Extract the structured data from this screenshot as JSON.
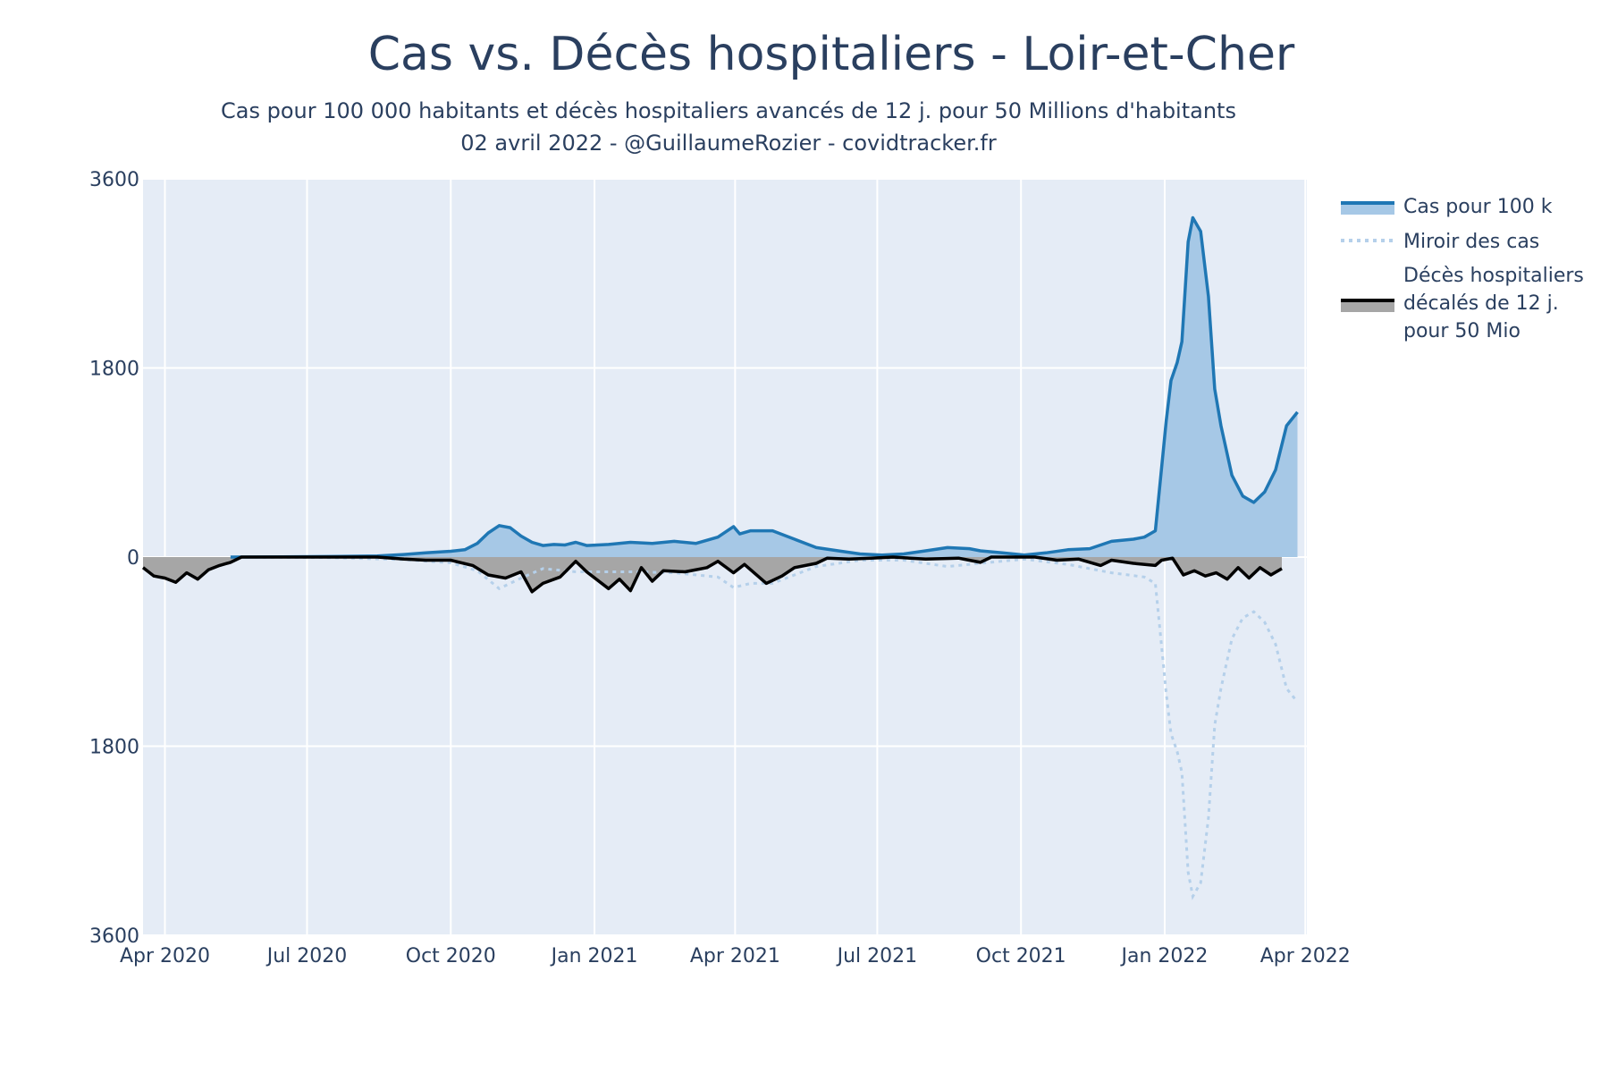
{
  "chart_data": {
    "type": "area",
    "title": "Cas vs. Décès hospitaliers - Loir-et-Cher",
    "subtitle_line1": "Cas pour 100 000 habitants et décès hospitaliers avancés de 12 j. pour 50 Millions d'habitants",
    "subtitle_line2": "02 avril 2022 - @GuillaumeRozier - covidtracker.fr",
    "xlabel": "",
    "ylabel": "",
    "xlim": [
      "2020-03-18",
      "2022-04-02"
    ],
    "ylim": [
      -3600,
      3600
    ],
    "x_ticks": [
      {
        "date": "2020-04-01",
        "label": "Apr 2020"
      },
      {
        "date": "2020-07-01",
        "label": "Jul 2020"
      },
      {
        "date": "2020-10-01",
        "label": "Oct 2020"
      },
      {
        "date": "2021-01-01",
        "label": "Jan 2021"
      },
      {
        "date": "2021-04-01",
        "label": "Apr 2021"
      },
      {
        "date": "2021-07-01",
        "label": "Jul 2021"
      },
      {
        "date": "2021-10-01",
        "label": "Oct 2021"
      },
      {
        "date": "2022-01-01",
        "label": "Jan 2022"
      },
      {
        "date": "2022-04-01",
        "label": "Apr 2022"
      }
    ],
    "y_ticks": [
      {
        "value": 3600,
        "label": "3600"
      },
      {
        "value": 1800,
        "label": "1800"
      },
      {
        "value": 0,
        "label": "0"
      },
      {
        "value": -1800,
        "label": "1800"
      },
      {
        "value": -3600,
        "label": "3600"
      }
    ],
    "grid": true,
    "legend_position": "right",
    "colors": {
      "cases_line": "#1f77b4",
      "cases_fill": "#a6c8e6",
      "mirror_line": "#b5d0ea",
      "deaths_line": "#000000",
      "deaths_fill": "#a6a6a6",
      "plot_bg": "#e5ecf6",
      "grid": "#ffffff"
    },
    "series": [
      {
        "name": "Cas pour 100 k",
        "style": "line-fill-up",
        "points": [
          [
            "2020-05-13",
            0
          ],
          [
            "2020-06-15",
            2
          ],
          [
            "2020-07-15",
            5
          ],
          [
            "2020-08-15",
            10
          ],
          [
            "2020-09-01",
            25
          ],
          [
            "2020-09-15",
            40
          ],
          [
            "2020-10-01",
            55
          ],
          [
            "2020-10-10",
            70
          ],
          [
            "2020-10-18",
            130
          ],
          [
            "2020-10-25",
            230
          ],
          [
            "2020-11-01",
            300
          ],
          [
            "2020-11-08",
            280
          ],
          [
            "2020-11-15",
            200
          ],
          [
            "2020-11-22",
            140
          ],
          [
            "2020-11-29",
            110
          ],
          [
            "2020-12-06",
            120
          ],
          [
            "2020-12-13",
            115
          ],
          [
            "2020-12-20",
            140
          ],
          [
            "2020-12-27",
            110
          ],
          [
            "2021-01-10",
            120
          ],
          [
            "2021-01-24",
            140
          ],
          [
            "2021-02-07",
            130
          ],
          [
            "2021-02-21",
            150
          ],
          [
            "2021-03-07",
            130
          ],
          [
            "2021-03-21",
            190
          ],
          [
            "2021-03-31",
            290
          ],
          [
            "2021-04-04",
            220
          ],
          [
            "2021-04-11",
            250
          ],
          [
            "2021-04-25",
            250
          ],
          [
            "2021-05-09",
            170
          ],
          [
            "2021-05-23",
            90
          ],
          [
            "2021-06-06",
            60
          ],
          [
            "2021-06-20",
            30
          ],
          [
            "2021-07-04",
            20
          ],
          [
            "2021-07-18",
            30
          ],
          [
            "2021-08-01",
            60
          ],
          [
            "2021-08-15",
            90
          ],
          [
            "2021-08-29",
            80
          ],
          [
            "2021-09-05",
            60
          ],
          [
            "2021-09-19",
            40
          ],
          [
            "2021-10-03",
            20
          ],
          [
            "2021-10-17",
            40
          ],
          [
            "2021-10-31",
            70
          ],
          [
            "2021-11-14",
            80
          ],
          [
            "2021-11-28",
            150
          ],
          [
            "2021-12-12",
            170
          ],
          [
            "2021-12-19",
            190
          ],
          [
            "2021-12-26",
            250
          ],
          [
            "2021-12-30",
            850
          ],
          [
            "2022-01-02",
            1300
          ],
          [
            "2022-01-05",
            1680
          ],
          [
            "2022-01-09",
            1850
          ],
          [
            "2022-01-12",
            2050
          ],
          [
            "2022-01-16",
            3000
          ],
          [
            "2022-01-19",
            3230
          ],
          [
            "2022-01-24",
            3100
          ],
          [
            "2022-01-29",
            2480
          ],
          [
            "2022-02-02",
            1600
          ],
          [
            "2022-02-06",
            1250
          ],
          [
            "2022-02-13",
            780
          ],
          [
            "2022-02-20",
            580
          ],
          [
            "2022-02-27",
            520
          ],
          [
            "2022-03-06",
            620
          ],
          [
            "2022-03-13",
            830
          ],
          [
            "2022-03-20",
            1250
          ],
          [
            "2022-03-27",
            1380
          ]
        ]
      },
      {
        "name": "Miroir des cas",
        "style": "dotted-mirror",
        "points": [
          [
            "2020-05-13",
            0
          ],
          [
            "2020-07-15",
            -5
          ],
          [
            "2020-09-01",
            -25
          ],
          [
            "2020-10-01",
            -55
          ],
          [
            "2020-10-18",
            -130
          ],
          [
            "2020-11-01",
            -300
          ],
          [
            "2020-11-15",
            -200
          ],
          [
            "2020-11-29",
            -110
          ],
          [
            "2020-12-20",
            -140
          ],
          [
            "2021-01-24",
            -140
          ],
          [
            "2021-02-21",
            -150
          ],
          [
            "2021-03-21",
            -190
          ],
          [
            "2021-03-31",
            -290
          ],
          [
            "2021-04-11",
            -250
          ],
          [
            "2021-04-25",
            -250
          ],
          [
            "2021-05-23",
            -90
          ],
          [
            "2021-06-20",
            -30
          ],
          [
            "2021-07-18",
            -30
          ],
          [
            "2021-08-15",
            -90
          ],
          [
            "2021-09-05",
            -60
          ],
          [
            "2021-10-03",
            -20
          ],
          [
            "2021-10-31",
            -70
          ],
          [
            "2021-11-28",
            -150
          ],
          [
            "2021-12-19",
            -190
          ],
          [
            "2021-12-26",
            -250
          ],
          [
            "2021-12-30",
            -850
          ],
          [
            "2022-01-02",
            -1300
          ],
          [
            "2022-01-05",
            -1680
          ],
          [
            "2022-01-09",
            -1850
          ],
          [
            "2022-01-12",
            -2050
          ],
          [
            "2022-01-16",
            -3000
          ],
          [
            "2022-01-19",
            -3230
          ],
          [
            "2022-01-24",
            -3100
          ],
          [
            "2022-01-29",
            -2480
          ],
          [
            "2022-02-02",
            -1600
          ],
          [
            "2022-02-06",
            -1250
          ],
          [
            "2022-02-13",
            -780
          ],
          [
            "2022-02-20",
            -580
          ],
          [
            "2022-02-27",
            -520
          ],
          [
            "2022-03-06",
            -620
          ],
          [
            "2022-03-13",
            -830
          ],
          [
            "2022-03-20",
            -1250
          ],
          [
            "2022-03-27",
            -1380
          ]
        ]
      },
      {
        "name": "Décès hospitaliers décalés de 12 j. pour 50 Mio",
        "style": "line-fill-down",
        "points": [
          [
            "2020-03-18",
            -100
          ],
          [
            "2020-03-25",
            -180
          ],
          [
            "2020-04-01",
            -200
          ],
          [
            "2020-04-08",
            -240
          ],
          [
            "2020-04-15",
            -150
          ],
          [
            "2020-04-22",
            -210
          ],
          [
            "2020-04-29",
            -120
          ],
          [
            "2020-05-06",
            -80
          ],
          [
            "2020-05-13",
            -50
          ],
          [
            "2020-05-20",
            0
          ],
          [
            "2020-08-15",
            0
          ],
          [
            "2020-09-01",
            -20
          ],
          [
            "2020-09-15",
            -30
          ],
          [
            "2020-10-01",
            -30
          ],
          [
            "2020-10-15",
            -80
          ],
          [
            "2020-10-25",
            -170
          ],
          [
            "2020-11-05",
            -200
          ],
          [
            "2020-11-15",
            -140
          ],
          [
            "2020-11-22",
            -330
          ],
          [
            "2020-11-29",
            -250
          ],
          [
            "2020-12-10",
            -190
          ],
          [
            "2020-12-20",
            -40
          ],
          [
            "2020-12-27",
            -140
          ],
          [
            "2021-01-10",
            -300
          ],
          [
            "2021-01-17",
            -210
          ],
          [
            "2021-01-24",
            -320
          ],
          [
            "2021-01-31",
            -100
          ],
          [
            "2021-02-07",
            -230
          ],
          [
            "2021-02-14",
            -130
          ],
          [
            "2021-02-28",
            -140
          ],
          [
            "2021-03-14",
            -100
          ],
          [
            "2021-03-21",
            -40
          ],
          [
            "2021-03-31",
            -150
          ],
          [
            "2021-04-07",
            -70
          ],
          [
            "2021-04-21",
            -250
          ],
          [
            "2021-05-01",
            -180
          ],
          [
            "2021-05-09",
            -100
          ],
          [
            "2021-05-23",
            -60
          ],
          [
            "2021-05-30",
            -10
          ],
          [
            "2021-06-13",
            -20
          ],
          [
            "2021-06-27",
            -10
          ],
          [
            "2021-07-11",
            0
          ],
          [
            "2021-08-01",
            -20
          ],
          [
            "2021-08-22",
            -10
          ],
          [
            "2021-09-05",
            -50
          ],
          [
            "2021-09-12",
            0
          ],
          [
            "2021-10-10",
            0
          ],
          [
            "2021-10-24",
            -30
          ],
          [
            "2021-11-07",
            -20
          ],
          [
            "2021-11-21",
            -80
          ],
          [
            "2021-11-28",
            -30
          ],
          [
            "2021-12-12",
            -60
          ],
          [
            "2021-12-26",
            -80
          ],
          [
            "2021-12-30",
            -30
          ],
          [
            "2022-01-06",
            -10
          ],
          [
            "2022-01-13",
            -170
          ],
          [
            "2022-01-20",
            -130
          ],
          [
            "2022-01-27",
            -180
          ],
          [
            "2022-02-03",
            -150
          ],
          [
            "2022-02-10",
            -210
          ],
          [
            "2022-02-17",
            -100
          ],
          [
            "2022-02-24",
            -200
          ],
          [
            "2022-03-03",
            -100
          ],
          [
            "2022-03-10",
            -170
          ],
          [
            "2022-03-17",
            -110
          ]
        ]
      }
    ]
  },
  "legend": {
    "cases_label": "Cas pour 100 k",
    "mirror_label": "Miroir des cas",
    "deaths_line1": "Décès hospitaliers",
    "deaths_line2": "décalés de 12 j.",
    "deaths_line3": "pour 50 Mio"
  }
}
